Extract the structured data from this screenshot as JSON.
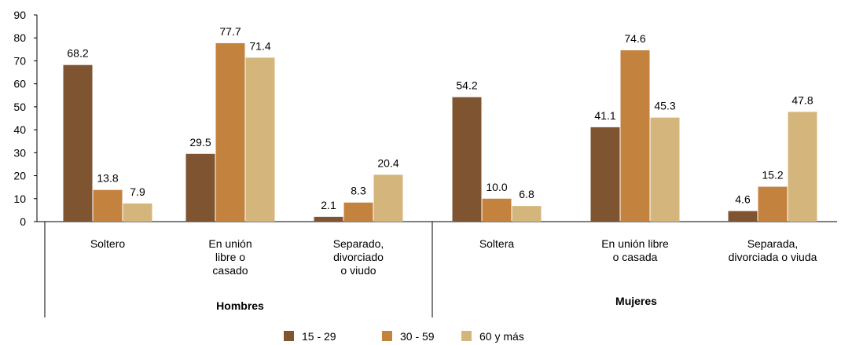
{
  "chart_data": {
    "type": "bar",
    "title": "",
    "xlabel": "",
    "ylabel": "",
    "ylim": [
      0,
      90
    ],
    "yticks": [
      0,
      10,
      20,
      30,
      40,
      50,
      60,
      70,
      80,
      90
    ],
    "grid": false,
    "legend_position": "bottom",
    "groups": [
      {
        "label": "Hombres",
        "categories": [
          [
            "Soltero"
          ],
          [
            "En unión",
            "libre o",
            "casado"
          ],
          [
            "Separado,",
            "divorciado",
            "o viudo"
          ]
        ]
      },
      {
        "label": "Mujeres",
        "categories": [
          [
            "Soltera"
          ],
          [
            "En unión libre",
            "o casada"
          ],
          [
            "Separada,",
            "divorciada o viuda"
          ]
        ]
      }
    ],
    "series": [
      {
        "name": "15 - 29",
        "color": "#7f5531",
        "values": [
          68.2,
          29.5,
          2.1,
          54.2,
          41.1,
          4.6
        ]
      },
      {
        "name": "30 - 59",
        "color": "#c4823f",
        "values": [
          13.8,
          77.7,
          8.3,
          10.0,
          74.6,
          15.2
        ]
      },
      {
        "name": "60 y más",
        "color": "#d4b67c",
        "values": [
          7.9,
          71.4,
          20.4,
          6.8,
          45.3,
          47.8
        ]
      }
    ]
  }
}
